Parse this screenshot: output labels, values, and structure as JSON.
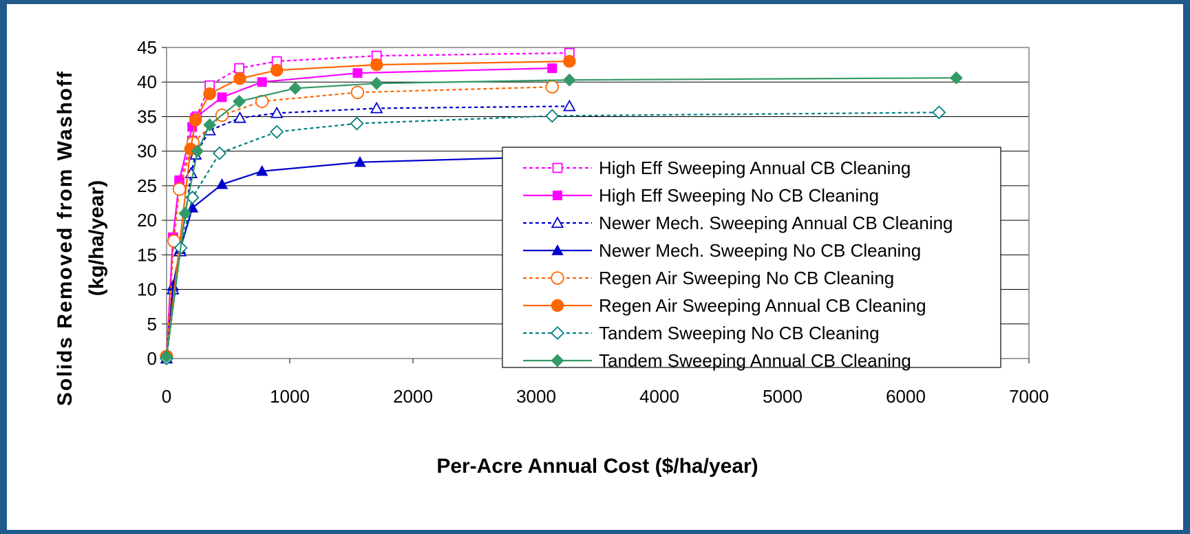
{
  "colors": {
    "frame": "#1f5a8a",
    "pink": "#ff00ff",
    "blue": "#0000cc",
    "orange": "#ff6600",
    "teal": "#007f7f",
    "green": "#339966"
  },
  "chart_data": {
    "type": "line",
    "title": "",
    "xlabel": "Per-Acre Annual Cost ($/ha/year)",
    "ylabel_line1": "Solids Removed from Washoff",
    "ylabel_line2": "(kg/ha/year)",
    "xlim": [
      0,
      7000
    ],
    "ylim": [
      0,
      45
    ],
    "xticks": [
      "0",
      "1000",
      "2000",
      "3000",
      "4000",
      "5000",
      "6000",
      "7000"
    ],
    "yticks": [
      "0",
      "5",
      "10",
      "15",
      "20",
      "25",
      "30",
      "35",
      "40",
      "45"
    ],
    "grid": "horizontal",
    "legend_position": "inside-right",
    "series": [
      {
        "name": "High Eff Sweeping Annual CB Cleaning",
        "color": "#ff00ff",
        "dash": "dotted",
        "marker": "square",
        "filled": false,
        "x": [
          0,
          52,
          104,
          208,
          245,
          350,
          590,
          895,
          1705,
          3270
        ],
        "y": [
          0.3,
          17.5,
          25.5,
          31.5,
          35,
          39.5,
          42,
          43,
          43.8,
          44.2
        ]
      },
      {
        "name": "High Eff Sweeping No CB Cleaning",
        "color": "#ff00ff",
        "dash": "solid",
        "marker": "square",
        "filled": true,
        "x": [
          0,
          52,
          104,
          208,
          230,
          450,
          775,
          1550,
          3130
        ],
        "y": [
          0.3,
          17.5,
          25.8,
          33.5,
          34.8,
          37.8,
          40,
          41.3,
          42
        ]
      },
      {
        "name": "Newer Mech. Sweeping Annual CB Cleaning",
        "color": "#0000cc",
        "dash": "dotted",
        "marker": "triangle",
        "filled": false,
        "x": [
          0,
          52,
          110,
          200,
          235,
          350,
          595,
          895,
          1705,
          3270
        ],
        "y": [
          0,
          10,
          15.5,
          26.8,
          29.5,
          33,
          34.8,
          35.5,
          36.2,
          36.5
        ]
      },
      {
        "name": "Newer Mech. Sweeping No CB Cleaning",
        "color": "#0000cc",
        "dash": "solid",
        "marker": "triangle",
        "filled": true,
        "x": [
          0,
          52,
          110,
          210,
          450,
          775,
          1570,
          3130
        ],
        "y": [
          0,
          10.5,
          15.8,
          21.8,
          25.2,
          27.1,
          28.4,
          29.2
        ]
      },
      {
        "name": "Regen Air Sweeping No CB Cleaning",
        "color": "#ff6600",
        "dash": "dotted",
        "marker": "circle",
        "filled": false,
        "x": [
          0,
          60,
          104,
          215,
          450,
          775,
          1550,
          3130
        ],
        "y": [
          0.3,
          17,
          24.5,
          31.2,
          35.2,
          37.2,
          38.5,
          39.3
        ]
      },
      {
        "name": "Regen Air Sweeping Annual CB Cleaning",
        "color": "#ff6600",
        "dash": "solid",
        "marker": "circle",
        "filled": true,
        "x": [
          0,
          195,
          235,
          350,
          595,
          895,
          1705,
          3270
        ],
        "y": [
          0.3,
          30.3,
          34.5,
          38.3,
          40.5,
          41.7,
          42.5,
          43
        ]
      },
      {
        "name": "Tandem Sweeping No CB Cleaning",
        "color": "#007f7f",
        "dash": "dotted",
        "marker": "diamond",
        "filled": false,
        "x": [
          0,
          115,
          210,
          430,
          895,
          1545,
          3130,
          6270
        ],
        "y": [
          0,
          16,
          23.3,
          29.7,
          32.8,
          34,
          35.1,
          35.6
        ]
      },
      {
        "name": "Tandem Sweeping Annual CB Cleaning",
        "color": "#339966",
        "dash": "solid",
        "marker": "diamond",
        "filled": true,
        "x": [
          0,
          150,
          250,
          350,
          590,
          1045,
          1705,
          3270,
          6410
        ],
        "y": [
          0.3,
          21,
          30,
          33.8,
          37.2,
          39.1,
          39.8,
          40.3,
          40.6
        ]
      }
    ]
  }
}
